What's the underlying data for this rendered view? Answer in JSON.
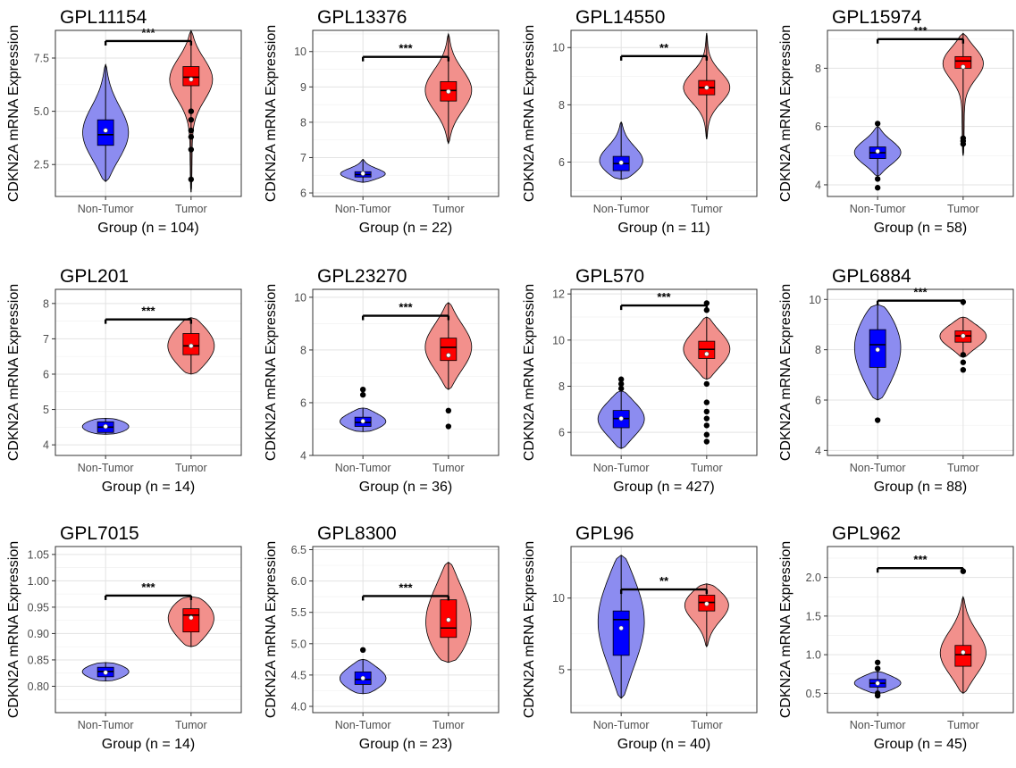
{
  "chart_data": [
    {
      "type": "violin",
      "title": "GPL11154",
      "ylabel": "CDKN2A mRNA Expression",
      "xlabel": "Group (n = 104)",
      "categories": [
        "Non-Tumor",
        "Tumor"
      ],
      "ylim": [
        1.0,
        8.8
      ],
      "yticks": [
        2.5,
        5.0,
        7.5
      ],
      "ytick_labels": [
        "2.5",
        "5.0",
        "7.5"
      ],
      "significance": "***",
      "bracket_y": 8.3,
      "groups": [
        {
          "name": "Non-Tumor",
          "min": 1.7,
          "q1": 3.4,
          "median": 3.9,
          "q3": 4.6,
          "max": 7.2,
          "mean": 4.1,
          "outliers": []
        },
        {
          "name": "Tumor",
          "min": 1.2,
          "q1": 6.2,
          "median": 6.6,
          "q3": 7.1,
          "max": 8.8,
          "mean": 6.5,
          "outliers": [
            5.0,
            4.6,
            4.1,
            3.8,
            3.2,
            1.8
          ]
        }
      ]
    },
    {
      "type": "violin",
      "title": "GPL13376",
      "ylabel": "CDKN2A mRNA Expression",
      "xlabel": "Group (n = 22)",
      "categories": [
        "Non-Tumor",
        "Tumor"
      ],
      "ylim": [
        5.9,
        10.6
      ],
      "yticks": [
        6,
        7,
        8,
        9,
        10
      ],
      "ytick_labels": [
        "6",
        "7",
        "8",
        "9",
        "10"
      ],
      "significance": "***",
      "bracket_y": 9.85,
      "groups": [
        {
          "name": "Non-Tumor",
          "min": 6.3,
          "q1": 6.45,
          "median": 6.52,
          "q3": 6.6,
          "max": 6.95,
          "mean": 6.55,
          "outliers": []
        },
        {
          "name": "Tumor",
          "min": 7.4,
          "q1": 8.6,
          "median": 8.9,
          "q3": 9.15,
          "max": 10.5,
          "mean": 8.87,
          "outliers": []
        }
      ]
    },
    {
      "type": "violin",
      "title": "GPL14550",
      "ylabel": "CDKN2A mRNA Expression",
      "xlabel": "Group (n = 11)",
      "categories": [
        "Non-Tumor",
        "Tumor"
      ],
      "ylim": [
        4.8,
        10.6
      ],
      "yticks": [
        6,
        8,
        10
      ],
      "ytick_labels": [
        "6",
        "8",
        "10"
      ],
      "significance": "**",
      "bracket_y": 9.7,
      "groups": [
        {
          "name": "Non-Tumor",
          "min": 5.4,
          "q1": 5.7,
          "median": 5.95,
          "q3": 6.2,
          "max": 7.4,
          "mean": 5.98,
          "outliers": []
        },
        {
          "name": "Tumor",
          "min": 6.8,
          "q1": 8.35,
          "median": 8.6,
          "q3": 8.85,
          "max": 10.5,
          "mean": 8.6,
          "outliers": []
        }
      ]
    },
    {
      "type": "violin",
      "title": "GPL15974",
      "ylabel": "CDKN2A mRNA Expression",
      "xlabel": "Group (n = 58)",
      "categories": [
        "Non-Tumor",
        "Tumor"
      ],
      "ylim": [
        3.6,
        9.3
      ],
      "yticks": [
        4,
        6,
        8
      ],
      "ytick_labels": [
        "4",
        "6",
        "8"
      ],
      "significance": "***",
      "bracket_y": 9.0,
      "groups": [
        {
          "name": "Non-Tumor",
          "min": 4.3,
          "q1": 4.9,
          "median": 5.1,
          "q3": 5.3,
          "max": 6.0,
          "mean": 5.15,
          "outliers": [
            6.1,
            4.2,
            3.9
          ]
        },
        {
          "name": "Tumor",
          "min": 5.0,
          "q1": 8.0,
          "median": 8.25,
          "q3": 8.4,
          "max": 9.2,
          "mean": 8.05,
          "outliers": [
            5.6,
            5.5,
            5.4
          ]
        }
      ]
    },
    {
      "type": "violin",
      "title": "GPL201",
      "ylabel": "CDKN2A mRNA Expression",
      "xlabel": "Group (n = 14)",
      "categories": [
        "Non-Tumor",
        "Tumor"
      ],
      "ylim": [
        3.7,
        8.4
      ],
      "yticks": [
        4,
        5,
        6,
        7,
        8
      ],
      "ytick_labels": [
        "4",
        "5",
        "6",
        "7",
        "8"
      ],
      "significance": "***",
      "bracket_y": 7.55,
      "groups": [
        {
          "name": "Non-Tumor",
          "min": 4.3,
          "q1": 4.35,
          "median": 4.5,
          "q3": 4.65,
          "max": 4.75,
          "mean": 4.52,
          "outliers": []
        },
        {
          "name": "Tumor",
          "min": 6.0,
          "q1": 6.55,
          "median": 6.8,
          "q3": 7.15,
          "max": 7.6,
          "mean": 6.8,
          "outliers": []
        }
      ]
    },
    {
      "type": "violin",
      "title": "GPL23270",
      "ylabel": "CDKN2A mRNA Expression",
      "xlabel": "Group (n = 36)",
      "categories": [
        "Non-Tumor",
        "Tumor"
      ],
      "ylim": [
        4.0,
        10.3
      ],
      "yticks": [
        4,
        6,
        8,
        10
      ],
      "ytick_labels": [
        "4",
        "6",
        "8",
        "10"
      ],
      "significance": "***",
      "bracket_y": 9.3,
      "groups": [
        {
          "name": "Non-Tumor",
          "min": 4.9,
          "q1": 5.1,
          "median": 5.25,
          "q3": 5.45,
          "max": 5.8,
          "mean": 5.3,
          "outliers": [
            6.5,
            6.3
          ]
        },
        {
          "name": "Tumor",
          "min": 6.5,
          "q1": 7.6,
          "median": 8.1,
          "q3": 8.45,
          "max": 9.8,
          "mean": 7.8,
          "outliers": [
            5.7,
            5.1
          ]
        }
      ]
    },
    {
      "type": "violin",
      "title": "GPL570",
      "ylabel": "CDKN2A mRNA Expression",
      "xlabel": "Group (n = 427)",
      "categories": [
        "Non-Tumor",
        "Tumor"
      ],
      "ylim": [
        5.0,
        12.2
      ],
      "yticks": [
        6,
        8,
        10,
        12
      ],
      "ytick_labels": [
        "6",
        "8",
        "10",
        "12"
      ],
      "significance": "***",
      "bracket_y": 11.5,
      "groups": [
        {
          "name": "Non-Tumor",
          "min": 5.3,
          "q1": 6.2,
          "median": 6.6,
          "q3": 6.95,
          "max": 7.8,
          "mean": 6.6,
          "outliers": [
            8.3,
            8.1,
            7.9
          ]
        },
        {
          "name": "Tumor",
          "min": 8.3,
          "q1": 9.2,
          "median": 9.6,
          "q3": 9.95,
          "max": 11.0,
          "mean": 9.4,
          "outliers": [
            11.6,
            11.3,
            8.1,
            7.3,
            6.9,
            6.6,
            6.3,
            5.9,
            5.6
          ]
        }
      ]
    },
    {
      "type": "violin",
      "title": "GPL6884",
      "ylabel": "CDKN2A mRNA Expression",
      "xlabel": "Group (n = 88)",
      "categories": [
        "Non-Tumor",
        "Tumor"
      ],
      "ylim": [
        3.8,
        10.4
      ],
      "yticks": [
        4,
        6,
        8,
        10
      ],
      "ytick_labels": [
        "4",
        "6",
        "8",
        "10"
      ],
      "significance": "***",
      "bracket_y": 9.95,
      "groups": [
        {
          "name": "Non-Tumor",
          "min": 6.0,
          "q1": 7.3,
          "median": 8.2,
          "q3": 8.8,
          "max": 9.8,
          "mean": 8.0,
          "outliers": [
            5.2
          ]
        },
        {
          "name": "Tumor",
          "min": 7.7,
          "q1": 8.3,
          "median": 8.55,
          "q3": 8.75,
          "max": 9.3,
          "mean": 8.55,
          "outliers": [
            9.9,
            7.8,
            7.5,
            7.2
          ]
        }
      ]
    },
    {
      "type": "violin",
      "title": "GPL7015",
      "ylabel": "CDKN2A mRNA Expression",
      "xlabel": "Group (n = 14)",
      "categories": [
        "Non-Tumor",
        "Tumor"
      ],
      "ylim": [
        0.75,
        1.065
      ],
      "yticks": [
        0.8,
        0.85,
        0.9,
        0.95,
        1.0,
        1.05
      ],
      "ytick_labels": [
        "0.80",
        "0.85",
        "0.90",
        "0.95",
        "1.00",
        "1.05"
      ],
      "significance": "***",
      "bracket_y": 0.972,
      "groups": [
        {
          "name": "Non-Tumor",
          "min": 0.81,
          "q1": 0.818,
          "median": 0.828,
          "q3": 0.836,
          "max": 0.845,
          "mean": 0.826,
          "outliers": []
        },
        {
          "name": "Tumor",
          "min": 0.875,
          "q1": 0.903,
          "median": 0.935,
          "q3": 0.947,
          "max": 0.97,
          "mean": 0.93,
          "outliers": []
        }
      ]
    },
    {
      "type": "violin",
      "title": "GPL8300",
      "ylabel": "CDKN2A mRNA Expression",
      "xlabel": "Group (n = 23)",
      "categories": [
        "Non-Tumor",
        "Tumor"
      ],
      "ylim": [
        3.9,
        6.55
      ],
      "yticks": [
        4.0,
        4.5,
        5.0,
        5.5,
        6.0,
        6.5
      ],
      "ytick_labels": [
        "4.0",
        "4.5",
        "5.0",
        "5.5",
        "6.0",
        "6.5"
      ],
      "significance": "***",
      "bracket_y": 5.76,
      "groups": [
        {
          "name": "Non-Tumor",
          "min": 4.2,
          "q1": 4.35,
          "median": 4.43,
          "q3": 4.55,
          "max": 4.75,
          "mean": 4.45,
          "outliers": [
            4.9
          ]
        },
        {
          "name": "Tumor",
          "min": 4.7,
          "q1": 5.1,
          "median": 5.25,
          "q3": 5.7,
          "max": 6.3,
          "mean": 5.38,
          "outliers": []
        }
      ]
    },
    {
      "type": "violin",
      "title": "GPL96",
      "ylabel": "CDKN2A mRNA Expression",
      "xlabel": "Group (n = 40)",
      "categories": [
        "Non-Tumor",
        "Tumor"
      ],
      "ylim": [
        2.0,
        13.6
      ],
      "yticks": [
        5,
        10
      ],
      "ytick_labels": [
        "5",
        "10"
      ],
      "significance": "**",
      "bracket_y": 10.6,
      "groups": [
        {
          "name": "Non-Tumor",
          "min": 3.0,
          "q1": 6.0,
          "median": 8.5,
          "q3": 9.1,
          "max": 13.0,
          "mean": 7.9,
          "outliers": []
        },
        {
          "name": "Tumor",
          "min": 6.6,
          "q1": 9.1,
          "median": 9.7,
          "q3": 10.2,
          "max": 11.0,
          "mean": 9.6,
          "outliers": []
        }
      ]
    },
    {
      "type": "violin",
      "title": "GPL962",
      "ylabel": "CDKN2A mRNA Expression",
      "xlabel": "Group (n = 45)",
      "categories": [
        "Non-Tumor",
        "Tumor"
      ],
      "ylim": [
        0.25,
        2.4
      ],
      "yticks": [
        0.5,
        1.0,
        1.5,
        2.0
      ],
      "ytick_labels": [
        "0.5",
        "1.0",
        "1.5",
        "2.0"
      ],
      "significance": "***",
      "bracket_y": 2.12,
      "groups": [
        {
          "name": "Non-Tumor",
          "min": 0.5,
          "q1": 0.58,
          "median": 0.63,
          "q3": 0.68,
          "max": 0.78,
          "mean": 0.63,
          "outliers": [
            0.9,
            0.82,
            0.5,
            0.47
          ]
        },
        {
          "name": "Tumor",
          "min": 0.5,
          "q1": 0.85,
          "median": 1.0,
          "q3": 1.12,
          "max": 1.75,
          "mean": 1.03,
          "outliers": [
            2.08
          ]
        }
      ]
    }
  ],
  "colors": {
    "non_tumor_box": "#0000ff",
    "non_tumor_violin": "#8c8cf0",
    "tumor_box": "#ff0000",
    "tumor_violin": "#f2908c"
  }
}
